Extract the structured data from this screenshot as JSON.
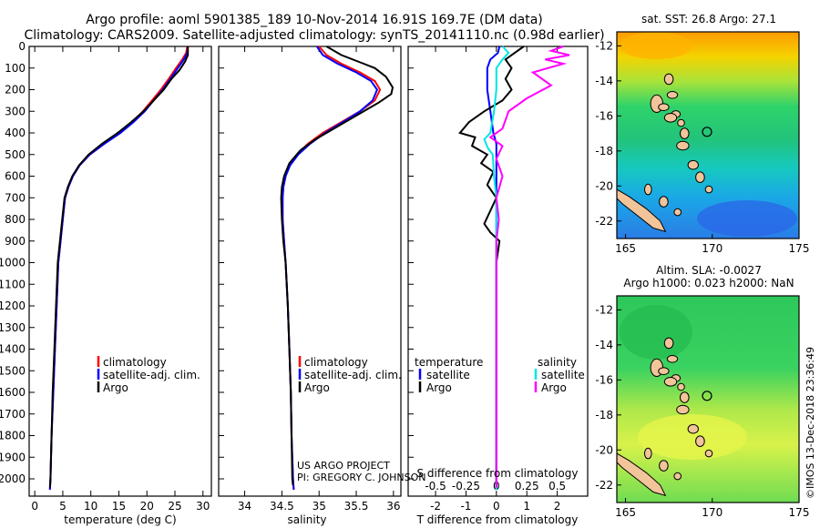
{
  "header": {
    "line1": "Argo profile: aoml 5901385_189 10-Nov-2014 16.91S 169.7E (DM data)",
    "line2": "Climatology: CARS2009. Satellite-adjusted climatology: synTS_20141110.nc (0.98d earlier)"
  },
  "colors": {
    "climatology": "#ff0000",
    "satellite": "#0000ff",
    "argo": "#000000",
    "sat_salinity": "#00e5e5",
    "argo_salinity": "#ff00ff"
  },
  "credit": {
    "line1": "US ARGO PROJECT",
    "line2": "PI: GREGORY C. JOHNSON"
  },
  "timestamp": "©IMOS 13-Dec-2018 23:36:49",
  "chart_data": [
    {
      "type": "line",
      "id": "temperature",
      "xlabel": "temperature (deg C)",
      "ylabel": "",
      "xlim": [
        -1,
        31.5
      ],
      "ylim": [
        2080,
        0
      ],
      "xticks": [
        0,
        5,
        10,
        15,
        20,
        25,
        30
      ],
      "yticks": [
        0,
        100,
        200,
        300,
        400,
        500,
        600,
        700,
        800,
        900,
        1000,
        1100,
        1200,
        1300,
        1400,
        1500,
        1600,
        1700,
        1800,
        1900,
        2000
      ],
      "legend": [
        "climatology",
        "satellite-adj. clim.",
        "Argo"
      ],
      "legend_position": "lower-center",
      "series": [
        {
          "name": "climatology",
          "color": "#ff0000",
          "points": [
            [
              27.2,
              0
            ],
            [
              27.0,
              30
            ],
            [
              26.3,
              60
            ],
            [
              25.2,
              100
            ],
            [
              23.9,
              150
            ],
            [
              22.5,
              200
            ],
            [
              20.9,
              250
            ],
            [
              19.3,
              300
            ],
            [
              17.4,
              350
            ],
            [
              15.2,
              400
            ],
            [
              12.4,
              450
            ],
            [
              9.8,
              500
            ],
            [
              8.0,
              550
            ],
            [
              6.8,
              600
            ],
            [
              6.0,
              650
            ],
            [
              5.4,
              700
            ],
            [
              5.0,
              800
            ],
            [
              4.6,
              900
            ],
            [
              4.2,
              1000
            ],
            [
              3.9,
              1200
            ],
            [
              3.6,
              1400
            ],
            [
              3.3,
              1600
            ],
            [
              3.0,
              1800
            ],
            [
              2.8,
              2000
            ],
            [
              2.7,
              2050
            ]
          ]
        },
        {
          "name": "satellite-adj. clim.",
          "color": "#0000ff",
          "points": [
            [
              27.3,
              0
            ],
            [
              27.2,
              30
            ],
            [
              26.6,
              60
            ],
            [
              25.5,
              100
            ],
            [
              24.2,
              150
            ],
            [
              22.8,
              200
            ],
            [
              21.2,
              250
            ],
            [
              19.6,
              300
            ],
            [
              17.6,
              350
            ],
            [
              15.3,
              400
            ],
            [
              12.4,
              450
            ],
            [
              9.8,
              500
            ],
            [
              8.0,
              550
            ],
            [
              6.8,
              600
            ],
            [
              6.0,
              650
            ],
            [
              5.4,
              700
            ],
            [
              5.0,
              800
            ],
            [
              4.6,
              900
            ],
            [
              4.2,
              1000
            ],
            [
              3.9,
              1200
            ],
            [
              3.6,
              1400
            ],
            [
              3.3,
              1600
            ],
            [
              3.0,
              1800
            ],
            [
              2.8,
              2000
            ],
            [
              2.7,
              2050
            ]
          ]
        },
        {
          "name": "Argo",
          "color": "#000000",
          "points": [
            [
              27.3,
              0
            ],
            [
              27.3,
              40
            ],
            [
              26.8,
              70
            ],
            [
              25.8,
              110
            ],
            [
              24.4,
              150
            ],
            [
              23.0,
              200
            ],
            [
              21.2,
              250
            ],
            [
              19.4,
              300
            ],
            [
              17.2,
              350
            ],
            [
              14.8,
              400
            ],
            [
              12.0,
              450
            ],
            [
              9.6,
              500
            ],
            [
              7.9,
              550
            ],
            [
              6.7,
              600
            ],
            [
              5.9,
              650
            ],
            [
              5.3,
              700
            ],
            [
              4.9,
              800
            ],
            [
              4.5,
              900
            ],
            [
              4.1,
              1000
            ],
            [
              3.8,
              1200
            ],
            [
              3.5,
              1400
            ],
            [
              3.2,
              1600
            ],
            [
              3.0,
              1800
            ],
            [
              2.8,
              2000
            ],
            [
              2.7,
              2040
            ]
          ]
        }
      ]
    },
    {
      "type": "line",
      "id": "salinity",
      "xlabel": "salinity",
      "ylabel": "",
      "xlim": [
        33.65,
        36.1
      ],
      "ylim": [
        2080,
        0
      ],
      "xticks": [
        34,
        34.5,
        35,
        35.5,
        36
      ],
      "legend": [
        "climatology",
        "satellite-adj. clim.",
        "Argo"
      ],
      "legend_position": "lower-center",
      "series": [
        {
          "name": "climatology",
          "color": "#ff0000",
          "points": [
            [
              35.0,
              0
            ],
            [
              35.1,
              40
            ],
            [
              35.3,
              80
            ],
            [
              35.55,
              120
            ],
            [
              35.75,
              160
            ],
            [
              35.82,
              200
            ],
            [
              35.75,
              250
            ],
            [
              35.55,
              300
            ],
            [
              35.3,
              350
            ],
            [
              35.05,
              400
            ],
            [
              34.85,
              450
            ],
            [
              34.7,
              500
            ],
            [
              34.6,
              550
            ],
            [
              34.55,
              600
            ],
            [
              34.52,
              650
            ],
            [
              34.51,
              700
            ],
            [
              34.51,
              800
            ],
            [
              34.53,
              900
            ],
            [
              34.55,
              1000
            ],
            [
              34.58,
              1200
            ],
            [
              34.6,
              1400
            ],
            [
              34.62,
              1600
            ],
            [
              34.63,
              1800
            ],
            [
              34.65,
              2000
            ],
            [
              34.66,
              2050
            ]
          ]
        },
        {
          "name": "satellite-adj. clim.",
          "color": "#0000ff",
          "points": [
            [
              34.97,
              0
            ],
            [
              35.05,
              40
            ],
            [
              35.25,
              80
            ],
            [
              35.5,
              120
            ],
            [
              35.7,
              160
            ],
            [
              35.78,
              200
            ],
            [
              35.72,
              250
            ],
            [
              35.55,
              300
            ],
            [
              35.32,
              350
            ],
            [
              35.08,
              400
            ],
            [
              34.88,
              450
            ],
            [
              34.72,
              500
            ],
            [
              34.61,
              550
            ],
            [
              34.55,
              600
            ],
            [
              34.52,
              650
            ],
            [
              34.51,
              700
            ],
            [
              34.51,
              800
            ],
            [
              34.53,
              900
            ],
            [
              34.55,
              1000
            ],
            [
              34.58,
              1200
            ],
            [
              34.6,
              1400
            ],
            [
              34.62,
              1600
            ],
            [
              34.63,
              1800
            ],
            [
              34.65,
              2000
            ],
            [
              34.66,
              2050
            ]
          ]
        },
        {
          "name": "Argo",
          "color": "#000000",
          "points": [
            [
              35.1,
              0
            ],
            [
              35.3,
              40
            ],
            [
              35.6,
              80
            ],
            [
              35.75,
              100
            ],
            [
              35.9,
              140
            ],
            [
              35.99,
              190
            ],
            [
              35.97,
              220
            ],
            [
              35.8,
              260
            ],
            [
              35.5,
              320
            ],
            [
              35.2,
              380
            ],
            [
              34.95,
              430
            ],
            [
              34.75,
              480
            ],
            [
              34.6,
              540
            ],
            [
              34.53,
              600
            ],
            [
              34.5,
              650
            ],
            [
              34.49,
              700
            ],
            [
              34.5,
              800
            ],
            [
              34.52,
              900
            ],
            [
              34.55,
              1000
            ],
            [
              34.58,
              1200
            ],
            [
              34.6,
              1400
            ],
            [
              34.62,
              1600
            ],
            [
              34.63,
              1800
            ],
            [
              34.64,
              2000
            ],
            [
              34.65,
              2030
            ]
          ]
        }
      ]
    },
    {
      "type": "line",
      "id": "differences",
      "xlabel": "T difference from climatology",
      "x2label": "S difference from climatology",
      "ylabel": "",
      "xlim": [
        -2.9,
        3.0
      ],
      "x2lim": [
        -0.725,
        0.75
      ],
      "ylim": [
        2080,
        0
      ],
      "xticks": [
        -2,
        -1,
        0,
        1,
        2
      ],
      "x2ticks": [
        -0.5,
        -0.25,
        0,
        0.25,
        0.5
      ],
      "legend_left_title": "temperature",
      "legend_right_title": "salinity",
      "legend_left": [
        "satellite",
        "Argo"
      ],
      "legend_right": [
        "satellite",
        "Argo"
      ],
      "series": [
        {
          "name": "temperature satellite",
          "color": "#0000ff",
          "axis": "T",
          "points": [
            [
              0.1,
              0
            ],
            [
              0.05,
              30
            ],
            [
              -0.2,
              60
            ],
            [
              -0.3,
              100
            ],
            [
              -0.3,
              200
            ],
            [
              -0.2,
              300
            ],
            [
              -0.1,
              400
            ],
            [
              0.0,
              450
            ],
            [
              0.0,
              600
            ],
            [
              0.0,
              800
            ],
            [
              0.0,
              1000
            ],
            [
              0.0,
              2050
            ]
          ]
        },
        {
          "name": "temperature Argo",
          "color": "#000000",
          "axis": "T",
          "points": [
            [
              0.9,
              0
            ],
            [
              0.6,
              30
            ],
            [
              0.3,
              60
            ],
            [
              0.5,
              100
            ],
            [
              0.3,
              150
            ],
            [
              0.5,
              200
            ],
            [
              0.2,
              250
            ],
            [
              -0.4,
              300
            ],
            [
              -0.9,
              350
            ],
            [
              -1.2,
              400
            ],
            [
              -0.7,
              420
            ],
            [
              -0.8,
              460
            ],
            [
              -0.3,
              500
            ],
            [
              -0.5,
              540
            ],
            [
              -0.1,
              580
            ],
            [
              -0.3,
              640
            ],
            [
              0.0,
              700
            ],
            [
              -0.2,
              760
            ],
            [
              -0.4,
              820
            ],
            [
              -0.2,
              860
            ],
            [
              0.1,
              900
            ],
            [
              0.0,
              1000
            ],
            [
              0.0,
              1200
            ],
            [
              0.0,
              1400
            ],
            [
              0.0,
              2040
            ]
          ]
        },
        {
          "name": "salinity satellite",
          "color": "#00e5e5",
          "axis": "S",
          "points": [
            [
              0.05,
              0
            ],
            [
              0.1,
              30
            ],
            [
              0.05,
              60
            ],
            [
              0.0,
              100
            ],
            [
              0.0,
              200
            ],
            [
              -0.02,
              300
            ],
            [
              -0.05,
              400
            ],
            [
              -0.1,
              430
            ],
            [
              -0.07,
              470
            ],
            [
              -0.03,
              500
            ],
            [
              -0.02,
              600
            ],
            [
              0.0,
              700
            ],
            [
              0.0,
              1000
            ],
            [
              0.0,
              2050
            ]
          ]
        },
        {
          "name": "salinity Argo",
          "color": "#ff00ff",
          "axis": "S",
          "points": [
            [
              0.55,
              0
            ],
            [
              0.45,
              20
            ],
            [
              0.6,
              40
            ],
            [
              0.4,
              60
            ],
            [
              0.55,
              80
            ],
            [
              0.3,
              120
            ],
            [
              0.45,
              180
            ],
            [
              0.25,
              240
            ],
            [
              0.1,
              300
            ],
            [
              0.05,
              380
            ],
            [
              -0.05,
              420
            ],
            [
              0.05,
              460
            ],
            [
              0.0,
              520
            ],
            [
              0.05,
              600
            ],
            [
              0.0,
              700
            ],
            [
              0.02,
              800
            ],
            [
              0.0,
              900
            ],
            [
              0.0,
              1000
            ],
            [
              0.0,
              1200
            ],
            [
              0.0,
              2040
            ]
          ]
        }
      ]
    },
    {
      "type": "heatmap",
      "id": "sst-map",
      "title": "sat. SST: 26.8 Argo: 27.1",
      "xlim": [
        164.5,
        175
      ],
      "ylim": [
        -23,
        -11.2
      ],
      "xticks": [
        165,
        170,
        175
      ],
      "yticks": [
        -12,
        -14,
        -16,
        -18,
        -20,
        -22
      ],
      "marker": {
        "lon": 169.7,
        "lat": -16.91
      }
    },
    {
      "type": "heatmap",
      "id": "sla-map",
      "title": "Altim. SLA: -0.0027",
      "subtitle": "Argo h1000: 0.023 h2000: NaN",
      "xlim": [
        164.5,
        175
      ],
      "ylim": [
        -23,
        -11.2
      ],
      "xticks": [
        165,
        170,
        175
      ],
      "yticks": [
        -12,
        -14,
        -16,
        -18,
        -20,
        -22
      ],
      "marker": {
        "lon": 169.7,
        "lat": -16.91
      }
    }
  ]
}
